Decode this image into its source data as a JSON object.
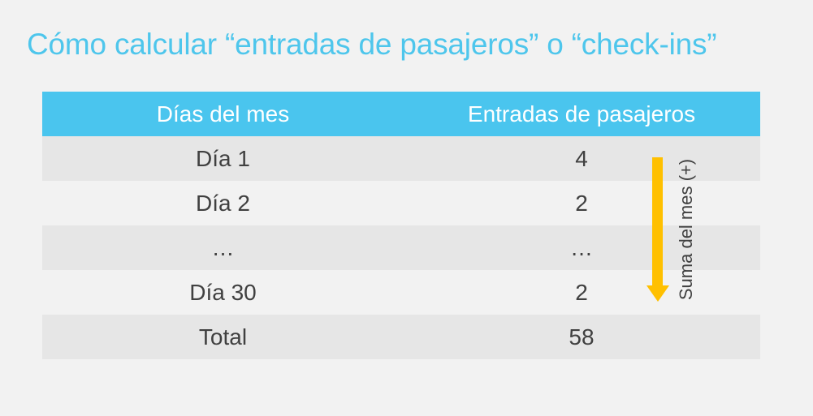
{
  "title": "Cómo calcular “entradas de pasajeros” o “check-ins”",
  "table": {
    "headers": [
      "Días del mes",
      "Entradas de pasajeros"
    ],
    "rows": [
      [
        "Día 1",
        "4"
      ],
      [
        "Día 2",
        "2"
      ],
      [
        "…",
        "…"
      ],
      [
        "Día 30",
        "2"
      ]
    ],
    "total": [
      "Total",
      "58"
    ]
  },
  "annotation": {
    "label": "Suma del mes (+)",
    "arrow_color": "#ffc000"
  },
  "colors": {
    "accent": "#4ac5ee",
    "row_alt": "#e6e6e6",
    "background": "#f2f2f2"
  }
}
